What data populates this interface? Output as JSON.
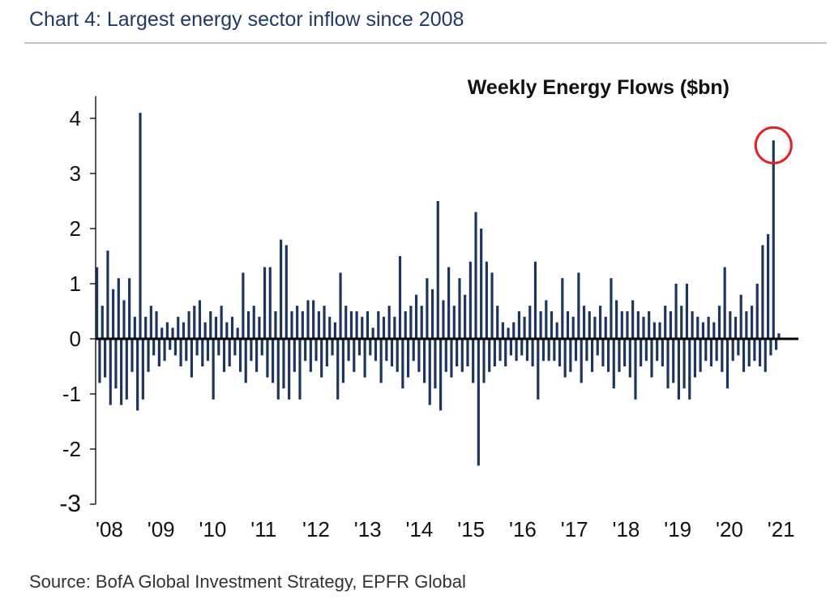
{
  "header": {
    "title": "Chart 4: Largest energy sector inflow since 2008"
  },
  "footer": {
    "source": "Source: BofA Global Investment Strategy, EPFR Global"
  },
  "colors": {
    "bars": "#1b355c",
    "zero_line": "#000000",
    "highlight": "#e22226",
    "title": "#1f3a63"
  },
  "chart_data": {
    "type": "bar",
    "title": "Weekly Energy Flows ($bn)",
    "xlabel": "",
    "ylabel": "",
    "ylim": [
      -3,
      4.5
    ],
    "yticks": [
      4,
      3,
      2,
      1,
      0,
      -1,
      -2,
      -3
    ],
    "ytick_labels": [
      "4",
      "3",
      "2",
      "1",
      "0",
      "-1",
      "-2",
      "-3"
    ],
    "xlim": [
      2008,
      2021.6
    ],
    "x_tick_labels": [
      "'08",
      "'09",
      "'10",
      "'11",
      "'12",
      "'13",
      "'14",
      "'15",
      "'16",
      "'17",
      "'18",
      "'19",
      "'20",
      "'21"
    ],
    "x_tick_values": [
      2008,
      2009,
      2010,
      2011,
      2012,
      2013,
      2014,
      2015,
      2016,
      2017,
      2018,
      2019,
      2020,
      2021
    ],
    "x_unit": "year (weekly bars)",
    "annotation": {
      "type": "circle",
      "target": "peak inflow 2021",
      "x": 2021.1,
      "y": 3.6
    },
    "values": [
      1.3,
      -0.8,
      0.6,
      -0.7,
      1.6,
      -1.2,
      0.9,
      -0.9,
      1.1,
      -1.2,
      0.7,
      -1.1,
      1.1,
      -0.6,
      0.4,
      -1.3,
      4.1,
      -1.1,
      0.4,
      -0.6,
      0.6,
      -0.3,
      0.5,
      -0.5,
      0.2,
      -0.4,
      0.3,
      -0.2,
      0.2,
      -0.3,
      0.4,
      -0.5,
      0.3,
      -0.4,
      0.5,
      -0.7,
      0.6,
      -0.3,
      0.7,
      -0.5,
      0.3,
      -0.4,
      0.5,
      -1.1,
      0.4,
      -0.3,
      0.6,
      -0.6,
      0.3,
      -0.5,
      0.4,
      -0.3,
      0.2,
      -0.6,
      1.2,
      -0.8,
      0.5,
      -0.4,
      0.6,
      -0.6,
      0.4,
      -0.3,
      1.3,
      -0.7,
      1.3,
      -0.8,
      0.5,
      -1.1,
      1.8,
      -0.9,
      1.7,
      -1.1,
      0.5,
      -0.6,
      0.6,
      -1.1,
      0.5,
      -0.4,
      0.7,
      -0.6,
      0.7,
      -0.4,
      0.5,
      -0.7,
      0.6,
      -0.5,
      0.4,
      -0.3,
      0.3,
      -1.1,
      1.2,
      -0.8,
      0.6,
      -0.4,
      0.5,
      -0.6,
      0.5,
      -0.3,
      0.4,
      -0.7,
      0.5,
      -0.3,
      0.2,
      -0.4,
      0.5,
      -0.8,
      0.4,
      -0.4,
      0.6,
      -0.5,
      0.4,
      -0.6,
      1.5,
      -0.9,
      0.5,
      -0.7,
      0.6,
      -0.4,
      0.8,
      -0.6,
      0.6,
      -0.8,
      1.1,
      -1.2,
      0.9,
      -0.9,
      2.5,
      -1.3,
      0.7,
      -0.6,
      1.3,
      -0.7,
      0.6,
      -0.5,
      1.1,
      -0.6,
      0.8,
      -0.5,
      1.4,
      -0.8,
      2.3,
      -2.3,
      2.0,
      -0.8,
      1.4,
      -0.6,
      1.2,
      -0.5,
      0.6,
      -0.4,
      0.3,
      -0.5,
      0.2,
      -0.3,
      0.3,
      -0.4,
      0.5,
      -0.3,
      0.4,
      -0.4,
      0.6,
      -0.5,
      1.4,
      -1.1,
      0.5,
      -0.4,
      0.7,
      -0.4,
      0.5,
      -0.4,
      0.3,
      -0.5,
      1.1,
      -0.7,
      0.5,
      -0.6,
      0.4,
      -0.4,
      1.2,
      -0.8,
      0.6,
      -0.4,
      0.5,
      -0.6,
      0.4,
      -0.3,
      0.6,
      -0.5,
      0.4,
      -0.6,
      1.1,
      -0.9,
      0.7,
      -0.6,
      0.5,
      -0.5,
      0.5,
      -0.7,
      0.7,
      -1.1,
      0.5,
      -0.5,
      0.4,
      -0.4,
      0.5,
      -0.7,
      0.3,
      -0.4,
      0.3,
      -0.5,
      0.6,
      -0.9,
      0.5,
      -0.8,
      1.0,
      -1.1,
      0.6,
      -0.9,
      1.0,
      -1.1,
      0.5,
      -0.7,
      0.4,
      -0.6,
      0.3,
      -0.4,
      0.4,
      -0.5,
      0.3,
      -0.4,
      0.6,
      -0.6,
      1.3,
      -0.9,
      0.5,
      -0.4,
      0.4,
      -0.3,
      0.8,
      -0.6,
      0.5,
      -0.5,
      0.6,
      -0.4,
      1.0,
      -0.5,
      1.7,
      -0.6,
      1.9,
      -0.3,
      3.6,
      -0.2,
      0.1
    ]
  }
}
